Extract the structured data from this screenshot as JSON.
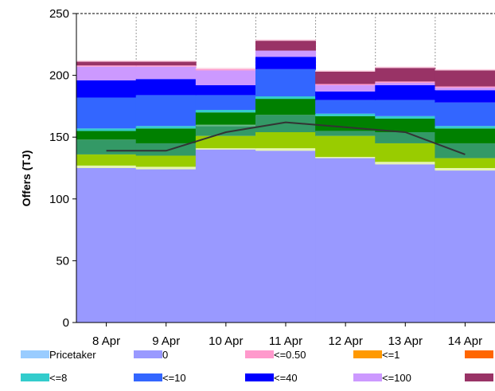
{
  "chart_data": {
    "type": "bar",
    "stacked": true,
    "ylabel": "Offers (TJ)",
    "ylim": [
      0,
      250
    ],
    "yticks": [
      0,
      50,
      100,
      150,
      200,
      250
    ],
    "grid": "horizontal dashed lines; vertical dotted category separators",
    "legend_position": "bottom",
    "categories": [
      "8 Apr",
      "9 Apr",
      "10 Apr",
      "11 Apr",
      "12 Apr",
      "13 Apr",
      "14 Apr"
    ],
    "series": [
      {
        "name": "Pricetaker",
        "color": "#99ccff",
        "values": [
          0,
          0,
          0,
          0,
          0,
          0,
          0
        ]
      },
      {
        "name": "0",
        "color": "#9999ff",
        "values": [
          125,
          124,
          140,
          139,
          133,
          128,
          123
        ]
      },
      {
        "name": "",
        "color": "#e6f5b0",
        "values": [
          2,
          2,
          1,
          2,
          1,
          2,
          2
        ]
      },
      {
        "name": "",
        "color": "#99cc00",
        "values": [
          9,
          9,
          10,
          13,
          17,
          15,
          8
        ]
      },
      {
        "name": "",
        "color": "#339966",
        "values": [
          12,
          10,
          8,
          14,
          4,
          9,
          12
        ]
      },
      {
        "name": "",
        "color": "#66bb88",
        "values": [
          0,
          0,
          1,
          0,
          0,
          0,
          0
        ]
      },
      {
        "name": "",
        "color": "#008000",
        "values": [
          7,
          12,
          10,
          13,
          12,
          11,
          12
        ]
      },
      {
        "name": "<=8",
        "color": "#33cccc",
        "values": [
          2,
          2,
          2,
          2,
          2,
          2,
          2
        ]
      },
      {
        "name": "<=10",
        "color": "#3366ff",
        "values": [
          25,
          25,
          12,
          22,
          11,
          13,
          19
        ]
      },
      {
        "name": "<=40",
        "color": "#0000ff",
        "values": [
          14,
          13,
          8,
          10,
          7,
          12,
          10
        ]
      },
      {
        "name": "<=100",
        "color": "#cc99ff",
        "values": [
          11,
          10,
          12,
          5,
          5,
          2,
          2
        ]
      },
      {
        "name": "<=0.50",
        "color": "#ff99cc",
        "values": [
          1,
          1,
          1,
          0,
          1,
          1,
          1
        ]
      },
      {
        "name": "",
        "color": "#993366",
        "values": [
          3,
          3,
          0,
          8,
          10,
          11,
          13
        ]
      },
      {
        "name": "",
        "color": "#fccfe0",
        "values": [
          1,
          1,
          1,
          1,
          1,
          1,
          1
        ]
      }
    ],
    "line": {
      "name": "",
      "color": "#333333",
      "values": [
        139,
        139,
        154,
        162,
        158,
        154,
        136
      ]
    }
  },
  "legend": {
    "row1": [
      {
        "label": "Pricetaker",
        "color": "#99ccff"
      },
      {
        "label": "0",
        "color": "#9999ff"
      },
      {
        "label": "<=0.50",
        "color": "#ff99cc"
      },
      {
        "label": "<=1",
        "color": "#ff9900"
      },
      {
        "label": "",
        "color": "#ff6600"
      }
    ],
    "row2": [
      {
        "label": "<=8",
        "color": "#33cccc"
      },
      {
        "label": "<=10",
        "color": "#3366ff"
      },
      {
        "label": "<=40",
        "color": "#0000ff"
      },
      {
        "label": "<=100",
        "color": "#cc99ff"
      },
      {
        "label": "",
        "color": "#993366"
      }
    ]
  }
}
